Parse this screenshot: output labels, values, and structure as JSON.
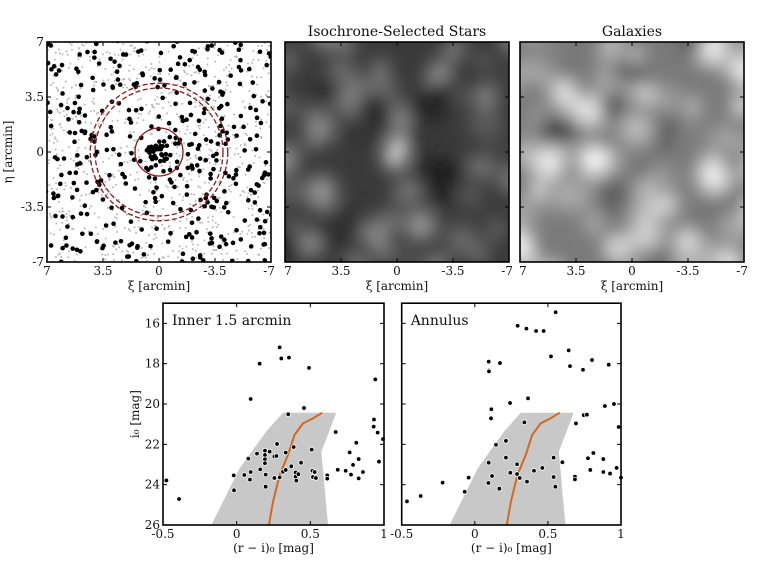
{
  "chart_data": [
    {
      "type": "scatter",
      "panel": "sky-map",
      "title": "",
      "xlabel": "ξ [arcmin]",
      "ylabel": "η [arcmin]",
      "xlim": [
        7,
        -7
      ],
      "ylim": [
        -7,
        7
      ],
      "xticks": [
        "7",
        "3.5",
        "0",
        "-3.5",
        "-7"
      ],
      "yticks": [
        "7",
        "3.5",
        "0",
        "-3.5",
        "-7"
      ],
      "series": [
        {
          "style": "black large dots (isochrone-selected stars)",
          "color": "#000000"
        },
        {
          "style": "grey small dots",
          "color": "#b8b8b8"
        }
      ],
      "circles": [
        {
          "radius": 1.5,
          "style": "solid",
          "color": "#8b1a1a"
        },
        {
          "radius": 4.0,
          "style": "dashed",
          "color": "#8b1a1a"
        },
        {
          "radius": 4.3,
          "style": "dashed",
          "color": "#8b1a1a"
        }
      ]
    },
    {
      "type": "heatmap",
      "panel": "stars-density",
      "title": "Isochrone-Selected Stars",
      "xlabel": "ξ [arcmin]",
      "xlim": [
        7,
        -7
      ],
      "ylim": [
        -7,
        7
      ],
      "xticks": [
        "7",
        "3.5",
        "0",
        "-3.5",
        "-7"
      ],
      "colormap": "greyscale",
      "peak": [
        0,
        0
      ]
    },
    {
      "type": "heatmap",
      "panel": "galaxies-density",
      "title": "Galaxies",
      "xlabel": "ξ [arcmin]",
      "xlim": [
        7,
        -7
      ],
      "ylim": [
        -7,
        7
      ],
      "xticks": [
        "7",
        "3.5",
        "0",
        "-3.5",
        "-7"
      ],
      "colormap": "greyscale"
    },
    {
      "type": "scatter",
      "panel": "cmd-inner",
      "title": "Inner 1.5 arcmin",
      "xlabel": "(r − i)₀ [mag]",
      "ylabel": "i₀ [mag]",
      "xlim": [
        -0.5,
        1
      ],
      "ylim": [
        26,
        15
      ],
      "xticks": [
        "-0.5",
        "0",
        "0.5",
        "1"
      ],
      "yticks": [
        "16",
        "18",
        "20",
        "22",
        "24",
        "26"
      ],
      "isochrone": [
        [
          0.219,
          26
        ],
        [
          0.247,
          24.84
        ],
        [
          0.292,
          23.52
        ],
        [
          0.348,
          22.53
        ],
        [
          0.393,
          21.53
        ],
        [
          0.45,
          20.96
        ],
        [
          0.518,
          20.71
        ],
        [
          0.581,
          20.43
        ]
      ],
      "isochrone_color": "#d2691e",
      "selection_region": {
        "left": [
          [
            -0.172,
            26
          ],
          [
            0.02,
            23.19
          ],
          [
            0.2,
            21.37
          ],
          [
            0.314,
            20.43
          ]
        ],
        "right": [
          [
            0.676,
            20.43
          ],
          [
            0.575,
            22.36
          ],
          [
            0.62,
            26
          ]
        ],
        "color": "#c8c8c8"
      },
      "points": [
        [
          0.292,
          17.19
        ],
        [
          0.303,
          17.74
        ],
        [
          0.355,
          17.7
        ],
        [
          0.156,
          18.0
        ],
        [
          0.491,
          18.21
        ],
        [
          0.941,
          18.78
        ],
        [
          0.095,
          19.75
        ],
        [
          0.457,
          20.2
        ],
        [
          0.35,
          20.51
        ],
        [
          0.932,
          20.77
        ],
        [
          0.93,
          21.12
        ],
        [
          0.957,
          21.42
        ],
        [
          0.672,
          21.39
        ],
        [
          0.993,
          21.74
        ],
        [
          -0.477,
          23.79
        ],
        [
          -0.391,
          24.71
        ],
        [
          -0.02,
          23.54
        ],
        [
          -0.018,
          24.28
        ],
        [
          0.052,
          23.52
        ],
        [
          0.079,
          22.71
        ],
        [
          0.095,
          23.37
        ],
        [
          0.09,
          23.75
        ],
        [
          0.138,
          22.46
        ],
        [
          0.16,
          23.24
        ],
        [
          0.192,
          22.31
        ],
        [
          0.192,
          22.53
        ],
        [
          0.192,
          22.74
        ],
        [
          0.192,
          22.94
        ],
        [
          0.197,
          23.5
        ],
        [
          0.197,
          24.1
        ],
        [
          0.224,
          22.36
        ],
        [
          0.256,
          22.6
        ],
        [
          0.27,
          22.58
        ],
        [
          0.274,
          21.98
        ],
        [
          0.256,
          23.67
        ],
        [
          0.292,
          23.64
        ],
        [
          0.314,
          23.36
        ],
        [
          0.333,
          22.41
        ],
        [
          0.333,
          23.27
        ],
        [
          0.387,
          22.13
        ],
        [
          0.371,
          23.09
        ],
        [
          0.4,
          23.4
        ],
        [
          0.4,
          23.6
        ],
        [
          0.405,
          23.8
        ],
        [
          0.419,
          23.48
        ],
        [
          0.437,
          22.91
        ],
        [
          0.509,
          22.26
        ],
        [
          0.514,
          23.31
        ],
        [
          0.529,
          23.37
        ],
        [
          0.518,
          23.62
        ],
        [
          0.538,
          23.67
        ],
        [
          0.615,
          23.54
        ],
        [
          0.615,
          23.7
        ],
        [
          0.686,
          23.26
        ],
        [
          0.74,
          23.31
        ],
        [
          0.767,
          22.4
        ],
        [
          0.79,
          23.02
        ],
        [
          0.776,
          23.5
        ],
        [
          0.812,
          21.92
        ],
        [
          0.828,
          22.73
        ],
        [
          0.828,
          23.69
        ],
        [
          0.857,
          23.37
        ],
        [
          0.966,
          22.86
        ]
      ]
    },
    {
      "type": "scatter",
      "panel": "cmd-annulus",
      "title": "Annulus",
      "xlabel": "(r − i)₀ [mag]",
      "xlim": [
        -0.5,
        1
      ],
      "ylim": [
        26,
        15
      ],
      "xticks": [
        "-0.5",
        "0",
        "0.5",
        "1"
      ],
      "isochrone": [
        [
          0.219,
          26
        ],
        [
          0.247,
          24.84
        ],
        [
          0.292,
          23.52
        ],
        [
          0.348,
          22.53
        ],
        [
          0.393,
          21.53
        ],
        [
          0.45,
          20.96
        ],
        [
          0.518,
          20.71
        ],
        [
          0.581,
          20.43
        ]
      ],
      "isochrone_color": "#d2691e",
      "selection_region": {
        "left": [
          [
            -0.172,
            26
          ],
          [
            0.02,
            23.19
          ],
          [
            0.2,
            21.37
          ],
          [
            0.314,
            20.43
          ]
        ],
        "right": [
          [
            0.676,
            20.43
          ],
          [
            0.575,
            22.36
          ],
          [
            0.62,
            26
          ]
        ],
        "color": "#c8c8c8"
      },
      "points": [
        [
          0.553,
          15.45
        ],
        [
          0.293,
          16.12
        ],
        [
          0.353,
          16.26
        ],
        [
          0.419,
          16.38
        ],
        [
          0.471,
          16.38
        ],
        [
          0.642,
          17.34
        ],
        [
          0.521,
          17.64
        ],
        [
          0.802,
          17.82
        ],
        [
          0.095,
          17.9
        ],
        [
          0.172,
          17.97
        ],
        [
          0.651,
          18.12
        ],
        [
          0.916,
          18.05
        ],
        [
          0.74,
          18.3
        ],
        [
          0.097,
          18.33
        ],
        [
          0.097,
          18.38
        ],
        [
          0.364,
          19.72
        ],
        [
          0.241,
          19.95
        ],
        [
          0.952,
          20.0
        ],
        [
          0.89,
          20.1
        ],
        [
          0.113,
          20.26
        ],
        [
          0.745,
          20.55
        ],
        [
          0.767,
          20.53
        ],
        [
          0.111,
          20.71
        ],
        [
          0.339,
          20.91
        ],
        [
          0.692,
          20.96
        ],
        [
          0.984,
          21.14
        ],
        [
          0.213,
          21.83
        ],
        [
          0.145,
          22.02
        ],
        [
          0.213,
          22.66
        ],
        [
          0.095,
          22.91
        ],
        [
          0.289,
          22.99
        ],
        [
          0.539,
          22.66
        ],
        [
          0.599,
          22.89
        ],
        [
          0.811,
          22.43
        ],
        [
          0.774,
          22.69
        ],
        [
          0.879,
          22.73
        ],
        [
          0.405,
          23.31
        ],
        [
          0.462,
          23.17
        ],
        [
          0.79,
          23.27
        ],
        [
          0.879,
          23.37
        ],
        [
          0.925,
          23.45
        ],
        [
          0.97,
          23.17
        ],
        [
          1.0,
          23.65
        ],
        [
          0.243,
          23.41
        ],
        [
          0.289,
          23.47
        ],
        [
          0.307,
          23.67
        ],
        [
          0.118,
          23.57
        ],
        [
          0.093,
          23.92
        ],
        [
          -0.042,
          23.65
        ],
        [
          0.357,
          23.85
        ],
        [
          0.539,
          23.62
        ],
        [
          0.551,
          24.1
        ],
        [
          0.685,
          23.6
        ],
        [
          0.685,
          23.74
        ],
        [
          0.168,
          24.2
        ],
        [
          -0.22,
          23.9
        ],
        [
          -0.069,
          24.35
        ],
        [
          -0.37,
          24.56
        ],
        [
          -0.464,
          24.83
        ]
      ]
    }
  ]
}
